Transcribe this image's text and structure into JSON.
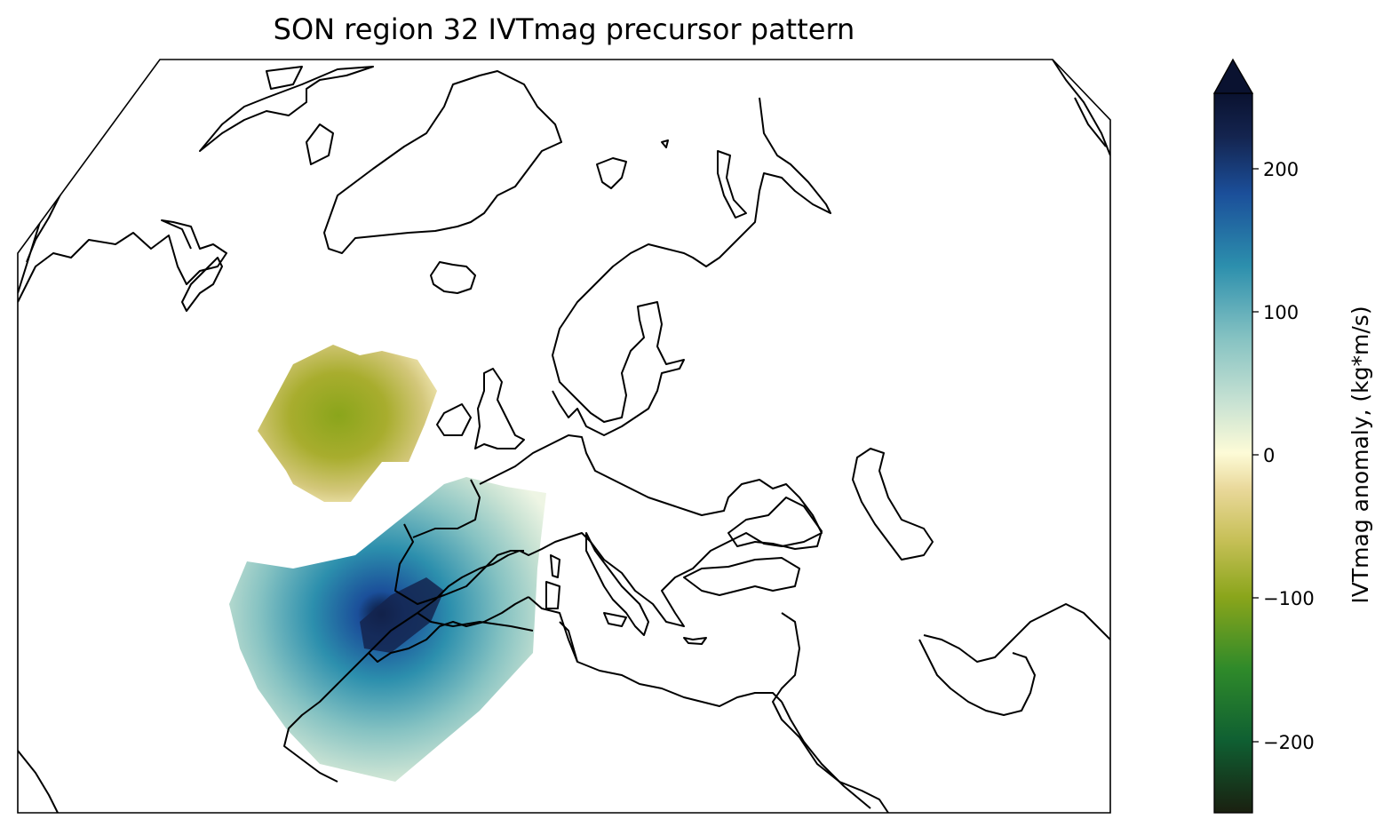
{
  "title": "SON region 32 IVTmag precursor pattern",
  "colorbar": {
    "label": "IVTmag anomaly, (kg*m/s)",
    "ticks": [
      "200",
      "100",
      "0",
      "−100",
      "−200"
    ],
    "tick_values": [
      200,
      100,
      0,
      -100,
      -200
    ],
    "range": [
      -250,
      250
    ],
    "extend": "max",
    "colormap_stops": [
      "#1a2010",
      "#0f5f32",
      "#2f8a2a",
      "#8aa51b",
      "#c7c058",
      "#e9d89a",
      "#fdfbd7",
      "#c8e2d3",
      "#85c2c2",
      "#2c8fad",
      "#1b4f9a",
      "#14244f",
      "#0a1230"
    ]
  },
  "map": {
    "projection": "orthographic-like (North Atlantic / Europe)",
    "features": [
      "coastlines",
      "borders"
    ],
    "anomaly_regions": [
      {
        "name": "negative anomaly (North Atlantic)",
        "sign": "negative",
        "approx_peak": -95
      },
      {
        "name": "positive anomaly (Iberia / NW Africa)",
        "sign": "positive",
        "approx_peak": 230
      }
    ]
  }
}
